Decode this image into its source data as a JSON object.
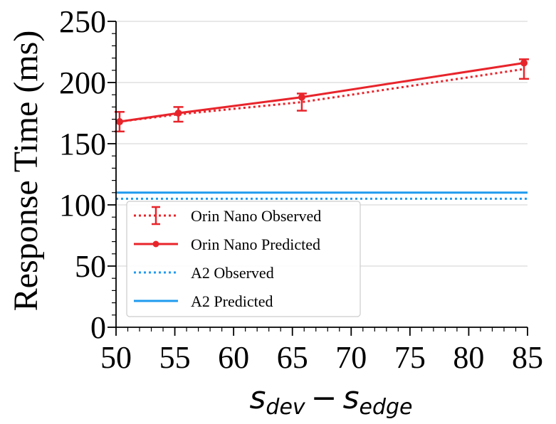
{
  "chart_data": {
    "type": "line",
    "title": "",
    "ylabel": "Response Time (ms)",
    "xlabel": {
      "s1": "s",
      "sub1": "dev",
      "minus": "−",
      "s2": "s",
      "sub2": "edge"
    },
    "xlim": [
      50,
      85
    ],
    "ylim": [
      0,
      250
    ],
    "xticks": [
      50,
      55,
      60,
      65,
      70,
      75,
      80,
      85
    ],
    "yticks": [
      0,
      50,
      100,
      150,
      200,
      250
    ],
    "grid": "horizontal",
    "legend_position": "lower-left",
    "series": [
      {
        "name": "Orin Nano Observed",
        "color": "#e8242b",
        "style": "dotted-errorbar",
        "x": [
          50.3,
          55.3,
          65.8,
          84.7
        ],
        "y": [
          168,
          174,
          184,
          211
        ],
        "err": [
          8,
          6,
          7,
          8
        ]
      },
      {
        "name": "Orin Nano Predicted",
        "color": "#e8242b",
        "style": "solid-marker",
        "x": [
          50.3,
          55.3,
          65.8,
          84.7
        ],
        "y": [
          168,
          175,
          188,
          216
        ]
      },
      {
        "name": "A2 Observed",
        "color": "#1f9bef",
        "style": "dotted",
        "x": [
          50,
          85
        ],
        "y": [
          105,
          105
        ]
      },
      {
        "name": "A2 Predicted",
        "color": "#1f9bef",
        "style": "solid",
        "x": [
          50,
          85
        ],
        "y": [
          110,
          110
        ]
      }
    ]
  }
}
